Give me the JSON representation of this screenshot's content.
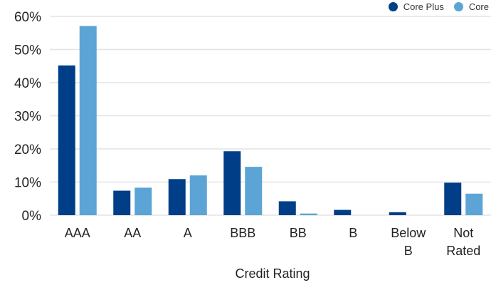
{
  "chart_data": {
    "type": "bar",
    "title": "",
    "xlabel": "Credit Rating",
    "ylabel": "",
    "ylim": [
      0,
      60
    ],
    "yticks": [
      0,
      10,
      20,
      30,
      40,
      50,
      60
    ],
    "ytick_labels": [
      "0%",
      "10%",
      "20%",
      "30%",
      "40%",
      "50%",
      "60%"
    ],
    "categories": [
      "AAA",
      "AA",
      "A",
      "BBB",
      "BB",
      "B",
      "Below B",
      "Not Rated"
    ],
    "series": [
      {
        "name": "Core Plus",
        "color": "#003f87",
        "values": [
          45.2,
          7.4,
          10.9,
          19.3,
          4.2,
          1.6,
          0.9,
          9.8
        ]
      },
      {
        "name": "Core",
        "color": "#5ca4d6",
        "values": [
          57.1,
          8.3,
          12.0,
          14.6,
          0.5,
          0,
          0,
          6.5
        ]
      }
    ],
    "grid": true,
    "legend_position": "top-right"
  }
}
